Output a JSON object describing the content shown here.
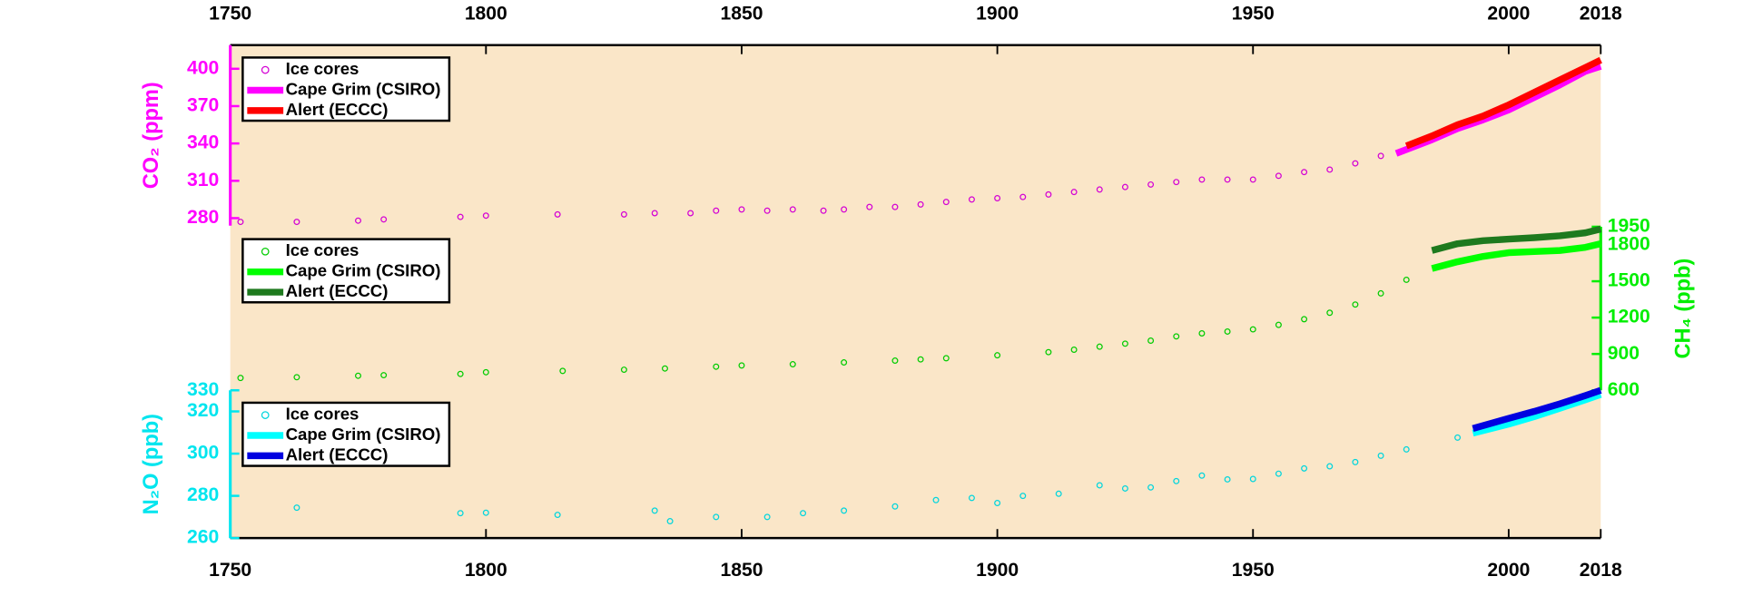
{
  "chart_data": [
    {
      "type": "scatter-line",
      "ylabel": "CO₂ (ppm)",
      "axis_color": "#ff00ff",
      "axis_side": "left",
      "xlim": [
        1750,
        2018
      ],
      "xticks": [
        1750,
        1800,
        1850,
        1900,
        1950,
        2000,
        2018
      ],
      "ylim": [
        274,
        419
      ],
      "yticks": [
        280,
        310,
        340,
        370,
        400
      ],
      "series": [
        {
          "name": "Ice cores",
          "color": "#d400d4",
          "style": "marker",
          "x": [
            1752,
            1763,
            1775,
            1780,
            1795,
            1800,
            1814,
            1827,
            1833,
            1840,
            1845,
            1850,
            1855,
            1860,
            1866,
            1870,
            1875,
            1880,
            1885,
            1890,
            1895,
            1900,
            1905,
            1910,
            1915,
            1920,
            1925,
            1930,
            1935,
            1940,
            1945,
            1950,
            1955,
            1960,
            1965,
            1970,
            1975
          ],
          "values": [
            277,
            277,
            278,
            279,
            281,
            282,
            283,
            283,
            284,
            284,
            286,
            287,
            286,
            287,
            286,
            287,
            289,
            289,
            291,
            293,
            295,
            296,
            297,
            299,
            301,
            303,
            305,
            307,
            309,
            311,
            311,
            311,
            314,
            317,
            319,
            324,
            330
          ]
        },
        {
          "name": "Cape Grim (CSIRO)",
          "color": "#ff00ff",
          "style": "line",
          "x": [
            1978,
            1985,
            1990,
            1995,
            2000,
            2005,
            2010,
            2015,
            2018
          ],
          "values": [
            332,
            343,
            352,
            359,
            367,
            377,
            387,
            398,
            402
          ]
        },
        {
          "name": "Alert (ECCC)",
          "color": "#ff0000",
          "style": "line",
          "x": [
            1980,
            1985,
            1990,
            1995,
            2000,
            2005,
            2010,
            2015,
            2018
          ],
          "values": [
            338,
            346,
            355,
            362,
            371,
            381,
            391,
            401,
            407
          ]
        }
      ]
    },
    {
      "type": "scatter-line",
      "ylabel": "CH₄ (ppb)",
      "axis_color": "#00ee00",
      "axis_side": "right",
      "xlim": [
        1750,
        2018
      ],
      "ylim": [
        600,
        1950
      ],
      "yticks": [
        600,
        900,
        1200,
        1500,
        1800,
        1950
      ],
      "series": [
        {
          "name": "Ice cores",
          "color": "#00cc00",
          "style": "marker",
          "x": [
            1752,
            1763,
            1775,
            1780,
            1795,
            1800,
            1815,
            1827,
            1835,
            1845,
            1850,
            1860,
            1870,
            1880,
            1885,
            1890,
            1900,
            1910,
            1915,
            1920,
            1925,
            1930,
            1935,
            1940,
            1945,
            1950,
            1955,
            1960,
            1965,
            1970,
            1975,
            1980
          ],
          "values": [
            702,
            708,
            720,
            725,
            735,
            749,
            760,
            770,
            780,
            795,
            805,
            815,
            830,
            845,
            855,
            865,
            889,
            915,
            935,
            960,
            985,
            1010,
            1045,
            1070,
            1085,
            1103,
            1140,
            1187,
            1240,
            1308,
            1400,
            1512
          ]
        },
        {
          "name": "Cape Grim (CSIRO)",
          "color": "#00ff00",
          "style": "line",
          "x": [
            1985,
            1990,
            1995,
            2000,
            2005,
            2010,
            2015,
            2018
          ],
          "values": [
            1605,
            1661,
            1705,
            1736,
            1745,
            1754,
            1780,
            1810
          ]
        },
        {
          "name": "Alert (ECCC)",
          "color": "#1e7a1e",
          "style": "line",
          "x": [
            1985,
            1990,
            1995,
            2000,
            2005,
            2010,
            2015,
            2018
          ],
          "values": [
            1754,
            1810,
            1835,
            1848,
            1860,
            1875,
            1900,
            1931
          ]
        }
      ]
    },
    {
      "type": "scatter-line",
      "ylabel": "N₂O (ppb)",
      "axis_color": "#00e5ee",
      "axis_side": "left",
      "xlim": [
        1750,
        2018
      ],
      "xticks": [
        1750,
        1800,
        1850,
        1900,
        1950,
        2000,
        2018
      ],
      "ylim": [
        260,
        330
      ],
      "yticks": [
        260,
        280,
        300,
        320,
        330
      ],
      "series": [
        {
          "name": "Ice cores",
          "color": "#00d5dd",
          "style": "marker",
          "x": [
            1763,
            1795,
            1800,
            1814,
            1833,
            1836,
            1845,
            1855,
            1862,
            1870,
            1880,
            1888,
            1895,
            1900,
            1905,
            1912,
            1920,
            1925,
            1930,
            1935,
            1940,
            1945,
            1950,
            1955,
            1960,
            1965,
            1970,
            1975,
            1980,
            1990
          ],
          "values": [
            274.4,
            271.8,
            272,
            271,
            273,
            268,
            270,
            270,
            271.8,
            273,
            275,
            278,
            279,
            276.6,
            280,
            281,
            285,
            283.5,
            284,
            287,
            289.6,
            287.8,
            288,
            290.5,
            293,
            294,
            296,
            299,
            302,
            307.6
          ]
        },
        {
          "name": "Cape Grim (CSIRO)",
          "color": "#00ffff",
          "style": "line",
          "x": [
            1993,
            2000,
            2005,
            2010,
            2015,
            2018
          ],
          "values": [
            309.7,
            314,
            317.5,
            321.5,
            325.5,
            328
          ]
        },
        {
          "name": "Alert (ECCC)",
          "color": "#0000e0",
          "style": "line",
          "x": [
            1993,
            2000,
            2005,
            2010,
            2015,
            2018
          ],
          "values": [
            311.9,
            316.7,
            320,
            323.6,
            327.5,
            330
          ]
        }
      ]
    }
  ]
}
